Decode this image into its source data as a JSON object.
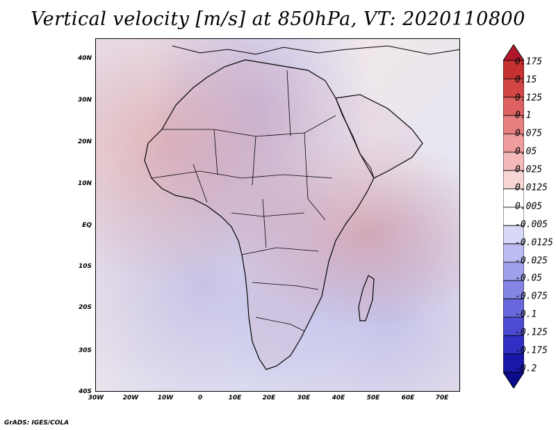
{
  "title": "Vertical velocity [m/s] at 850hPa, VT: 2020110800",
  "map": {
    "lat_ticks": [
      "40N",
      "30N",
      "20N",
      "10N",
      "EQ",
      "10S",
      "20S",
      "30S",
      "40S"
    ],
    "lon_ticks": [
      "30W",
      "20W",
      "10W",
      "0",
      "10E",
      "20E",
      "30E",
      "40E",
      "50E",
      "60E",
      "70E"
    ],
    "colors": {
      "rising": "#c83c3c",
      "sinking": "#4a4ae0",
      "neutral": "#ffffff",
      "coastline": "#000000"
    }
  },
  "colorbar": {
    "labels": [
      "0.175",
      "0.15",
      "0.125",
      "0.1",
      "0.075",
      "0.05",
      "0.025",
      "0.0125",
      "0.005",
      "-0.005",
      "-0.0125",
      "-0.025",
      "-0.05",
      "-0.075",
      "-0.1",
      "-0.125",
      "-0.175",
      "-0.2"
    ],
    "colors": [
      "#b2182b",
      "#c53030",
      "#d24646",
      "#de6262",
      "#e67f7f",
      "#ee9c9c",
      "#f4b9b9",
      "#f9d6d6",
      "#ffffff",
      "#ffffff",
      "#d8d8f8",
      "#bcbcf2",
      "#a0a0ec",
      "#8484e4",
      "#6868dc",
      "#4c4cd2",
      "#3030c4",
      "#1818a8",
      "#0a0a8a"
    ]
  },
  "credit": "GrADS: IGES/COLA"
}
